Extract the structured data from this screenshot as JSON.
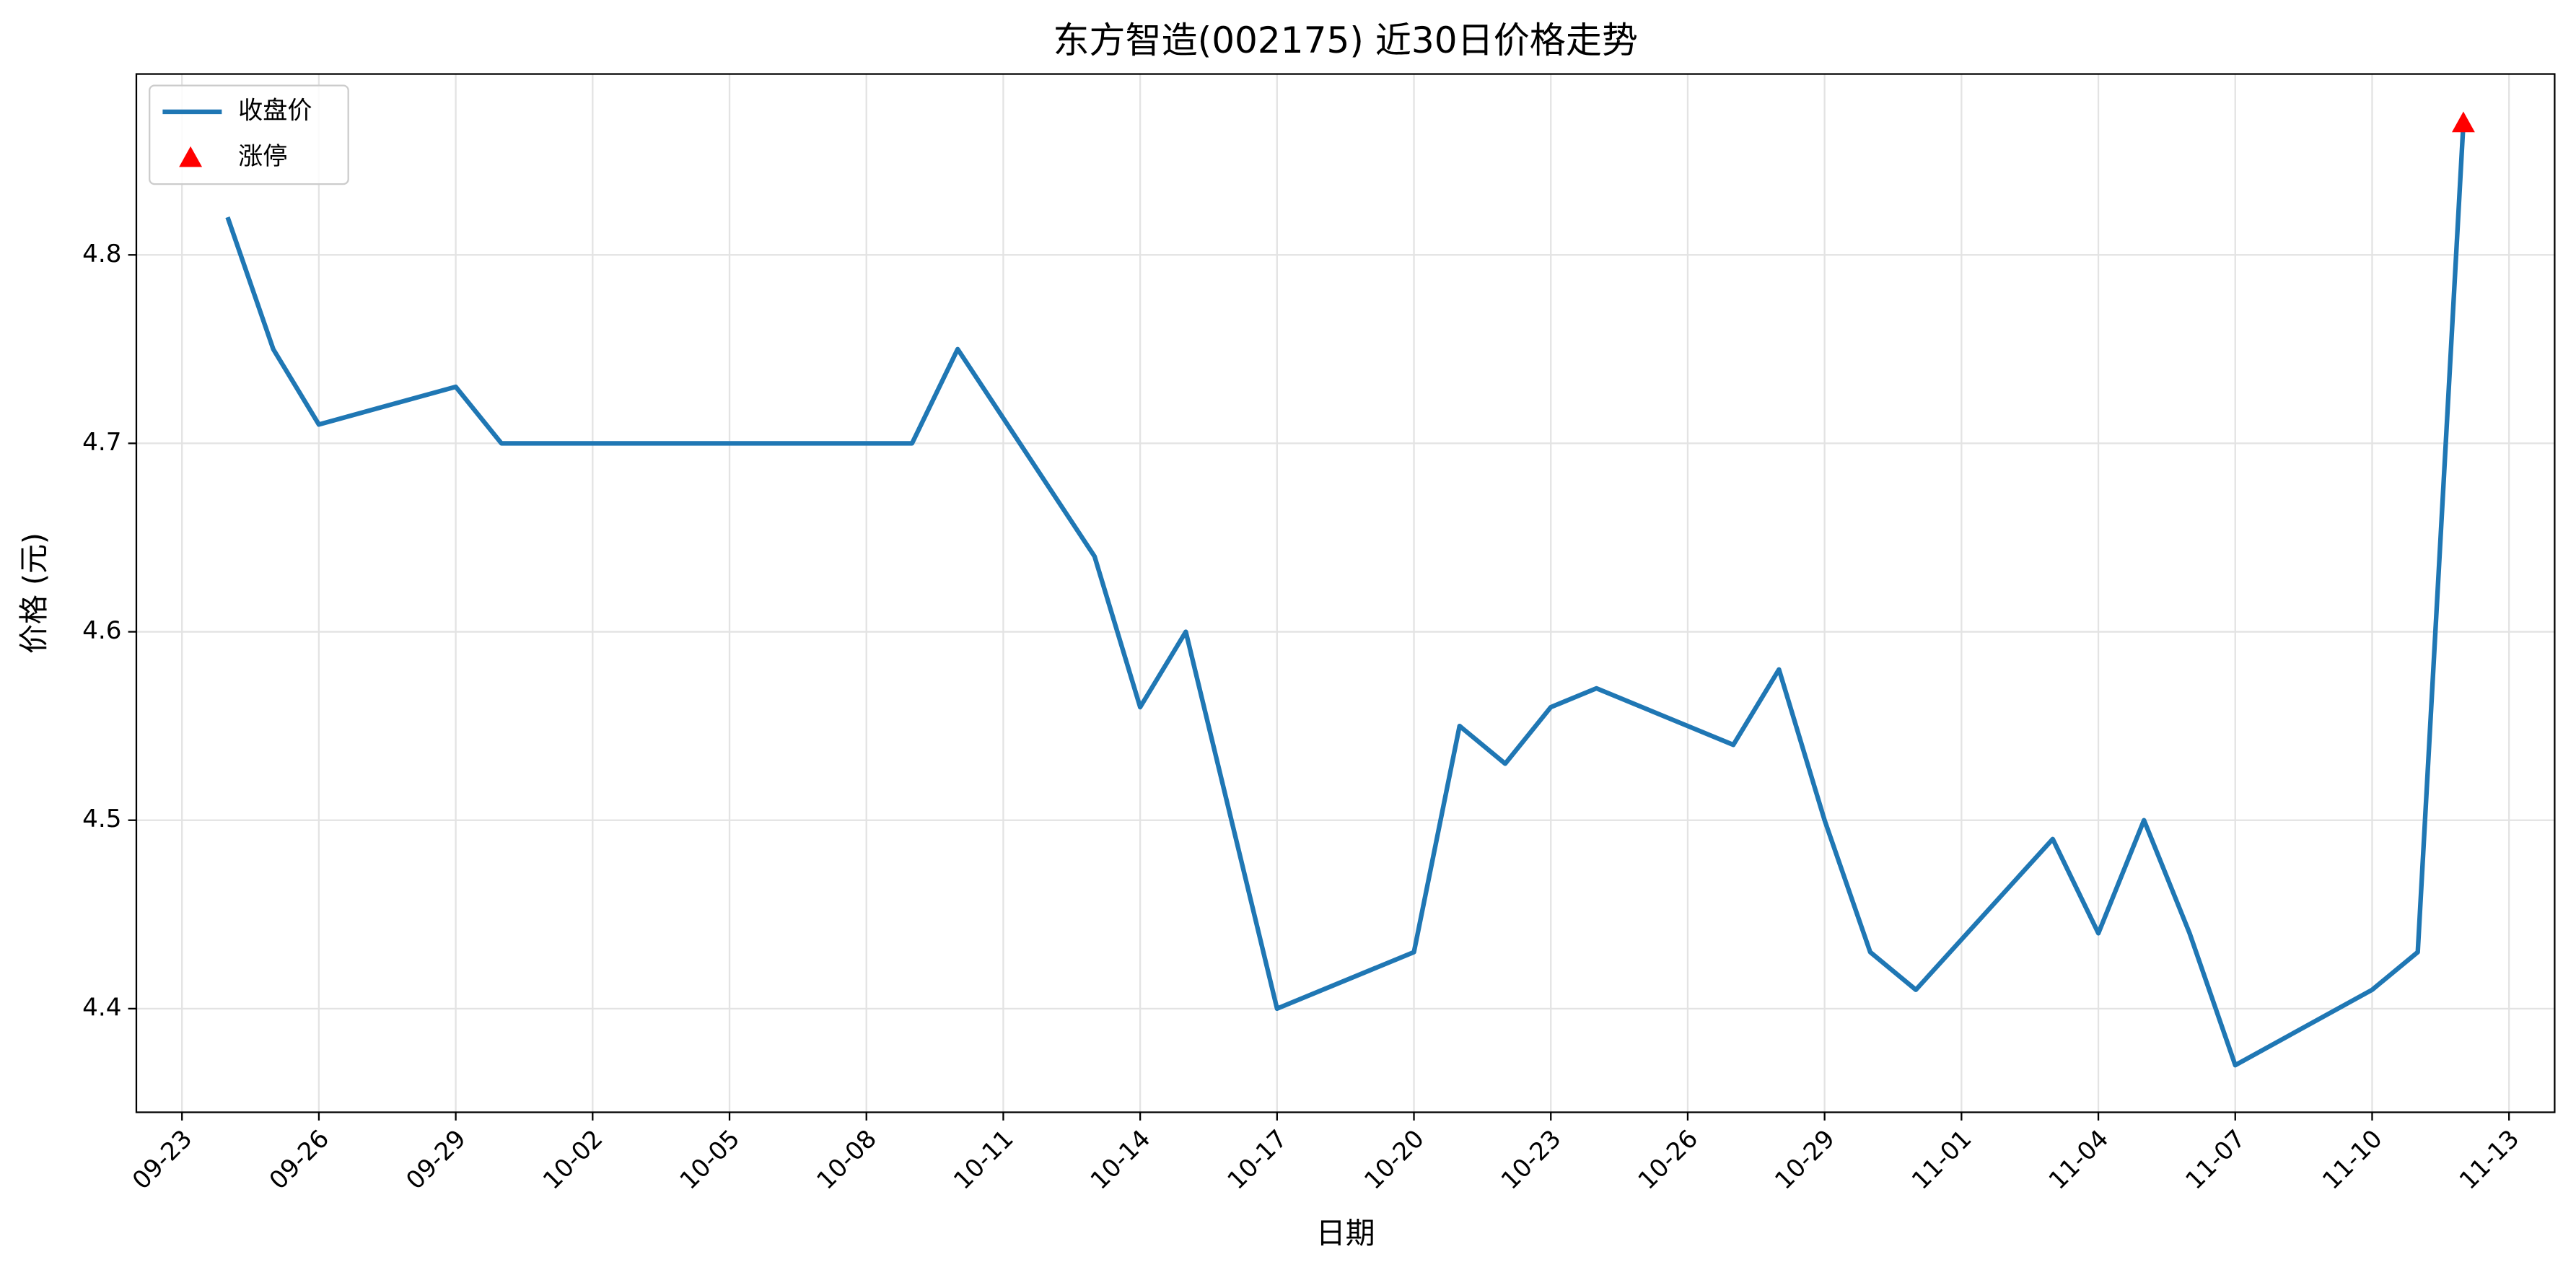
{
  "chart_data": {
    "type": "line",
    "title": "东方智造(002175) 近30日价格走势",
    "x_label": "日期",
    "y_label": "价格 (元)",
    "series": [
      {
        "name": "收盘价",
        "color": "#1f77b4",
        "marker": "none",
        "x": [
          "09-24",
          "09-25",
          "09-26",
          "09-29",
          "09-30",
          "10-09",
          "10-10",
          "10-13",
          "10-14",
          "10-15",
          "10-16",
          "10-17",
          "10-20",
          "10-21",
          "10-22",
          "10-23",
          "10-24",
          "10-27",
          "10-28",
          "10-29",
          "10-30",
          "10-31",
          "11-03",
          "11-04",
          "11-05",
          "11-06",
          "11-07",
          "11-10",
          "11-11",
          "11-12"
        ],
        "values": [
          4.82,
          4.75,
          4.71,
          4.73,
          4.7,
          4.7,
          4.75,
          4.64,
          4.56,
          4.6,
          4.5,
          4.4,
          4.43,
          4.55,
          4.53,
          4.56,
          4.57,
          4.54,
          4.58,
          4.5,
          4.43,
          4.41,
          4.49,
          4.44,
          4.5,
          4.44,
          4.37,
          4.41,
          4.43,
          4.87
        ]
      },
      {
        "name": "涨停",
        "color": "#ff0000",
        "marker": "triangle",
        "x": [
          "11-12"
        ],
        "values": [
          4.87
        ]
      }
    ],
    "xlim": [
      "09-22",
      "11-14"
    ],
    "xticks": [
      "09-23",
      "09-26",
      "09-29",
      "10-02",
      "10-05",
      "10-08",
      "10-11",
      "10-14",
      "10-17",
      "10-20",
      "10-23",
      "10-26",
      "10-29",
      "11-01",
      "11-04",
      "11-07",
      "11-10",
      "11-13"
    ],
    "ylim": [
      4.345,
      4.896
    ],
    "yticks": [
      4.4,
      4.5,
      4.6,
      4.7,
      4.8
    ],
    "grid": true,
    "legend": "upper-left"
  }
}
